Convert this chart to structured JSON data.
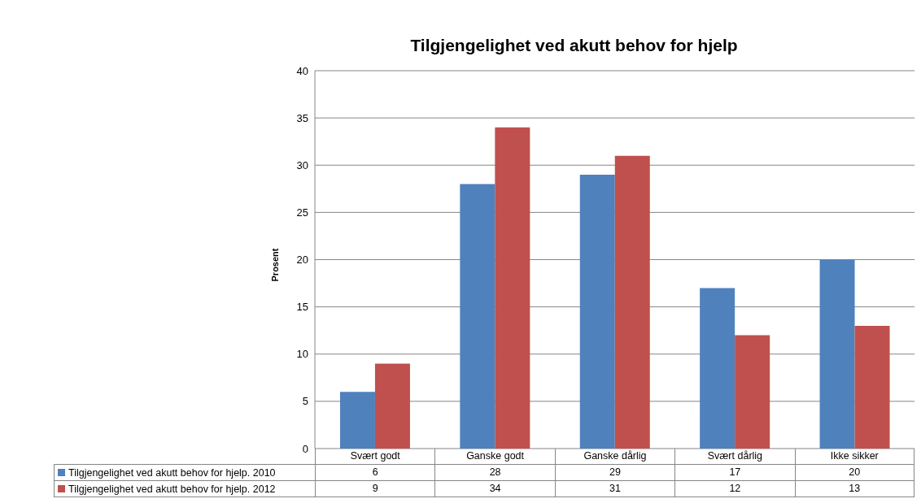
{
  "chart_data": {
    "type": "bar",
    "title": "Tilgjengelighet ved akutt behov for hjelp",
    "ylabel": "Prosent",
    "categories": [
      "Svært godt",
      "Ganske godt",
      "Ganske dårlig",
      "Svært dårlig",
      "Ikke sikker"
    ],
    "series": [
      {
        "name": "Tilgjengelighet ved akutt behov for hjelp. 2010",
        "color": "#4f81bd",
        "values": [
          6,
          28,
          29,
          17,
          20
        ]
      },
      {
        "name": "Tilgjengelighet ved akutt behov for hjelp. 2012",
        "color": "#c0504d",
        "values": [
          9,
          34,
          31,
          12,
          13
        ]
      }
    ],
    "ylim": [
      0,
      40
    ],
    "yticks": [
      0,
      5,
      10,
      15,
      20,
      25,
      30,
      35,
      40
    ],
    "grid": "y",
    "legend": "bottom",
    "data_labels": true
  }
}
